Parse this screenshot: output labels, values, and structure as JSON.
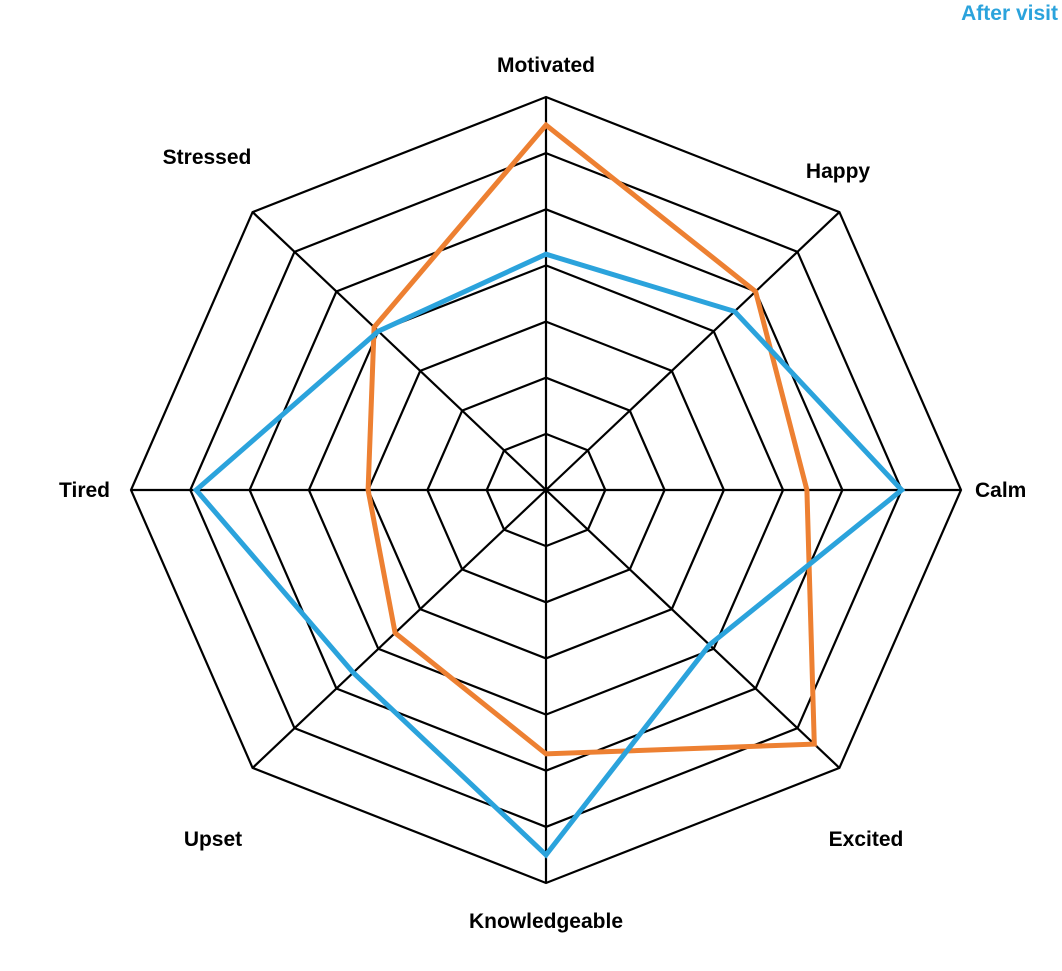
{
  "legend": {
    "items": [
      {
        "label": "After visit",
        "color": "#2BA3DC"
      }
    ],
    "position": "top-right"
  },
  "chart_data": {
    "type": "radar",
    "title": "",
    "categories": [
      "Motivated",
      "Happy",
      "Calm",
      "Excited",
      "Knowledgeable",
      "Upset",
      "Tired",
      "Stressed"
    ],
    "series": [
      {
        "name": "After visit",
        "color": "#2BA3DC",
        "values": [
          4.2,
          4.5,
          6.0,
          3.9,
          6.5,
          4.6,
          5.9,
          4.0
        ]
      },
      {
        "name": "",
        "color": "#ED8032",
        "values": [
          6.5,
          5.0,
          4.4,
          6.4,
          4.7,
          3.6,
          3.0,
          4.1
        ]
      }
    ],
    "scale": {
      "min": 0,
      "max": 7,
      "rings": 7,
      "tick_labels_visible": false
    },
    "grid": true,
    "grid_color": "#000000",
    "legend": {
      "position": "top-right",
      "items": [
        {
          "label": "After visit",
          "color": "#2BA3DC"
        }
      ]
    }
  }
}
